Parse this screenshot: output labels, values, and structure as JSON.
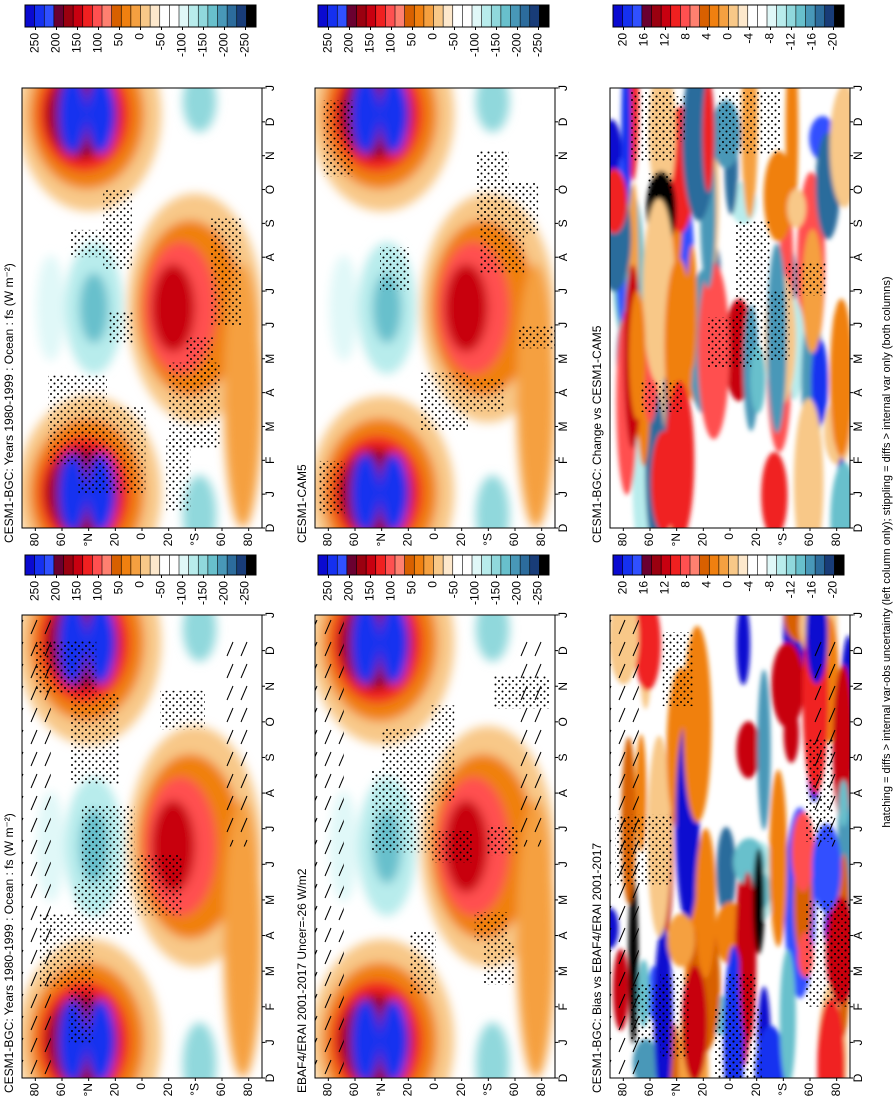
{
  "chart_data": [
    {
      "type": "contour",
      "title": "CESM1-BGC: Years 1980-1999 : Ocean : fs (W m⁻²)",
      "categories": [
        "D",
        "J",
        "F",
        "M",
        "A",
        "M",
        "J",
        "J",
        "A",
        "S",
        "O",
        "N",
        "D",
        "J"
      ],
      "ylim": [
        90,
        -90
      ],
      "yticks": [
        80,
        60,
        {
          "value": 40,
          "label": "°N"
        },
        20,
        0,
        {
          "value": -20,
          "label": "20"
        },
        {
          "value": -40,
          "label": "°S"
        },
        {
          "value": -60,
          "label": "60"
        },
        {
          "value": -80,
          "label": "80"
        }
      ],
      "colorbar": {
        "ticks": [
          250,
          200,
          150,
          100,
          50,
          0,
          -50,
          -100,
          -150,
          -200,
          -250
        ],
        "colors": [
          "#0a0ad0",
          "#1530f0",
          "#3050ff",
          "#6a0030",
          "#9a0010",
          "#c80010",
          "#f02020",
          "#ff5050",
          "#ff8070",
          "#d86000",
          "#f08010",
          "#f5a040",
          "#f8c888",
          "#fde8cc",
          "#ffffff",
          "#ffffff",
          "#e0f8f8",
          "#b8ecec",
          "#90d8dc",
          "#68c0cc",
          "#4898b8",
          "#2c6c9c",
          "#183c78",
          "#000000"
        ]
      },
      "stippling": true,
      "hatching": true
    },
    {
      "type": "contour",
      "title": "EBAF4/ERAI 2001-2017 Uncer=-26 W/m2",
      "categories": [
        "D",
        "J",
        "F",
        "M",
        "A",
        "M",
        "J",
        "J",
        "A",
        "S",
        "O",
        "N",
        "D",
        "J"
      ],
      "ylim": [
        90,
        -90
      ],
      "yticks": [
        80,
        60,
        {
          "value": 40,
          "label": "°N"
        },
        20,
        0,
        {
          "value": -20,
          "label": "20"
        },
        {
          "value": -40,
          "label": "°S"
        },
        {
          "value": -60,
          "label": "60"
        },
        {
          "value": -80,
          "label": "80"
        }
      ],
      "colorbar": {
        "ticks": [
          250,
          200,
          150,
          100,
          50,
          0,
          -50,
          -100,
          -150,
          -200,
          -250
        ],
        "colors": [
          "#0a0ad0",
          "#1530f0",
          "#3050ff",
          "#6a0030",
          "#9a0010",
          "#c80010",
          "#f02020",
          "#ff5050",
          "#ff8070",
          "#d86000",
          "#f08010",
          "#f5a040",
          "#f8c888",
          "#fde8cc",
          "#ffffff",
          "#ffffff",
          "#e0f8f8",
          "#b8ecec",
          "#90d8dc",
          "#68c0cc",
          "#4898b8",
          "#2c6c9c",
          "#183c78",
          "#000000"
        ]
      },
      "stippling": true,
      "hatching": true
    },
    {
      "type": "contour",
      "title": "CESM1-BGC: Bias vs EBAF4/ERAI 2001-2017",
      "categories": [
        "D",
        "J",
        "F",
        "M",
        "A",
        "M",
        "J",
        "J",
        "A",
        "S",
        "O",
        "N",
        "D",
        "J"
      ],
      "ylim": [
        90,
        -90
      ],
      "yticks": [
        80,
        60,
        {
          "value": 40,
          "label": "°N"
        },
        20,
        0,
        {
          "value": -20,
          "label": "20"
        },
        {
          "value": -40,
          "label": "°S"
        },
        {
          "value": -60,
          "label": "60"
        },
        {
          "value": -80,
          "label": "80"
        }
      ],
      "colorbar": {
        "ticks": [
          20,
          16,
          12,
          8,
          4,
          0,
          -4,
          -8,
          -12,
          -16,
          -20
        ],
        "colors": [
          "#0a0ad0",
          "#1530f0",
          "#3050ff",
          "#6a0030",
          "#9a0010",
          "#c80010",
          "#f02020",
          "#ff5050",
          "#ff8070",
          "#d86000",
          "#f08010",
          "#f5a040",
          "#f8c888",
          "#fde8cc",
          "#ffffff",
          "#ffffff",
          "#e0f8f8",
          "#b8ecec",
          "#90d8dc",
          "#68c0cc",
          "#4898b8",
          "#2c6c9c",
          "#183c78",
          "#000000"
        ]
      },
      "stippling": true,
      "hatching": true
    },
    {
      "type": "contour",
      "title": "CESM1-BGC: Years 1980-1999 : Ocean : fs (W m⁻²)",
      "categories": [
        "D",
        "J",
        "F",
        "M",
        "A",
        "M",
        "J",
        "J",
        "A",
        "S",
        "O",
        "N",
        "D",
        "J"
      ],
      "ylim": [
        90,
        -90
      ],
      "yticks": [
        80,
        60,
        {
          "value": 40,
          "label": "°N"
        },
        20,
        0,
        {
          "value": -20,
          "label": "20"
        },
        {
          "value": -40,
          "label": "°S"
        },
        {
          "value": -60,
          "label": "60"
        },
        {
          "value": -80,
          "label": "80"
        }
      ],
      "colorbar": {
        "ticks": [
          250,
          200,
          150,
          100,
          50,
          0,
          -50,
          -100,
          -150,
          -200,
          -250
        ],
        "colors": [
          "#0a0ad0",
          "#1530f0",
          "#3050ff",
          "#6a0030",
          "#9a0010",
          "#c80010",
          "#f02020",
          "#ff5050",
          "#ff8070",
          "#d86000",
          "#f08010",
          "#f5a040",
          "#f8c888",
          "#fde8cc",
          "#ffffff",
          "#ffffff",
          "#e0f8f8",
          "#b8ecec",
          "#90d8dc",
          "#68c0cc",
          "#4898b8",
          "#2c6c9c",
          "#183c78",
          "#000000"
        ]
      },
      "stippling": true,
      "hatching": false
    },
    {
      "type": "contour",
      "title": "CESM1-CAM5",
      "categories": [
        "D",
        "J",
        "F",
        "M",
        "A",
        "M",
        "J",
        "J",
        "A",
        "S",
        "O",
        "N",
        "D",
        "J"
      ],
      "ylim": [
        90,
        -90
      ],
      "yticks": [
        80,
        60,
        {
          "value": 40,
          "label": "°N"
        },
        20,
        0,
        {
          "value": -20,
          "label": "20"
        },
        {
          "value": -40,
          "label": "°S"
        },
        {
          "value": -60,
          "label": "60"
        },
        {
          "value": -80,
          "label": "80"
        }
      ],
      "colorbar": {
        "ticks": [
          250,
          200,
          150,
          100,
          50,
          0,
          -50,
          -100,
          -150,
          -200,
          -250
        ],
        "colors": [
          "#0a0ad0",
          "#1530f0",
          "#3050ff",
          "#6a0030",
          "#9a0010",
          "#c80010",
          "#f02020",
          "#ff5050",
          "#ff8070",
          "#d86000",
          "#f08010",
          "#f5a040",
          "#f8c888",
          "#fde8cc",
          "#ffffff",
          "#ffffff",
          "#e0f8f8",
          "#b8ecec",
          "#90d8dc",
          "#68c0cc",
          "#4898b8",
          "#2c6c9c",
          "#183c78",
          "#000000"
        ]
      },
      "stippling": true,
      "hatching": false
    },
    {
      "type": "contour",
      "title": "CESM1-BGC: Change vs CESM1-CAM5",
      "categories": [
        "D",
        "J",
        "F",
        "M",
        "A",
        "M",
        "J",
        "J",
        "A",
        "S",
        "O",
        "N",
        "D",
        "J"
      ],
      "ylim": [
        90,
        -90
      ],
      "yticks": [
        80,
        60,
        {
          "value": 40,
          "label": "°N"
        },
        20,
        0,
        {
          "value": -20,
          "label": "20"
        },
        {
          "value": -40,
          "label": "°S"
        },
        {
          "value": -60,
          "label": "60"
        },
        {
          "value": -80,
          "label": "80"
        }
      ],
      "colorbar": {
        "ticks": [
          20,
          16,
          12,
          8,
          4,
          0,
          -4,
          -8,
          -12,
          -16,
          -20
        ],
        "colors": [
          "#0a0ad0",
          "#1530f0",
          "#3050ff",
          "#6a0030",
          "#9a0010",
          "#c80010",
          "#f02020",
          "#ff5050",
          "#ff8070",
          "#d86000",
          "#f08010",
          "#f5a040",
          "#f8c888",
          "#fde8cc",
          "#ffffff",
          "#ffffff",
          "#e0f8f8",
          "#b8ecec",
          "#90d8dc",
          "#68c0cc",
          "#4898b8",
          "#2c6c9c",
          "#183c78",
          "#000000"
        ]
      },
      "stippling": true,
      "hatching": false
    }
  ],
  "caption": "hatching = diffs > internal var-obs uncertainty (left column only); stippling = diffs > internal var only (both columns)"
}
